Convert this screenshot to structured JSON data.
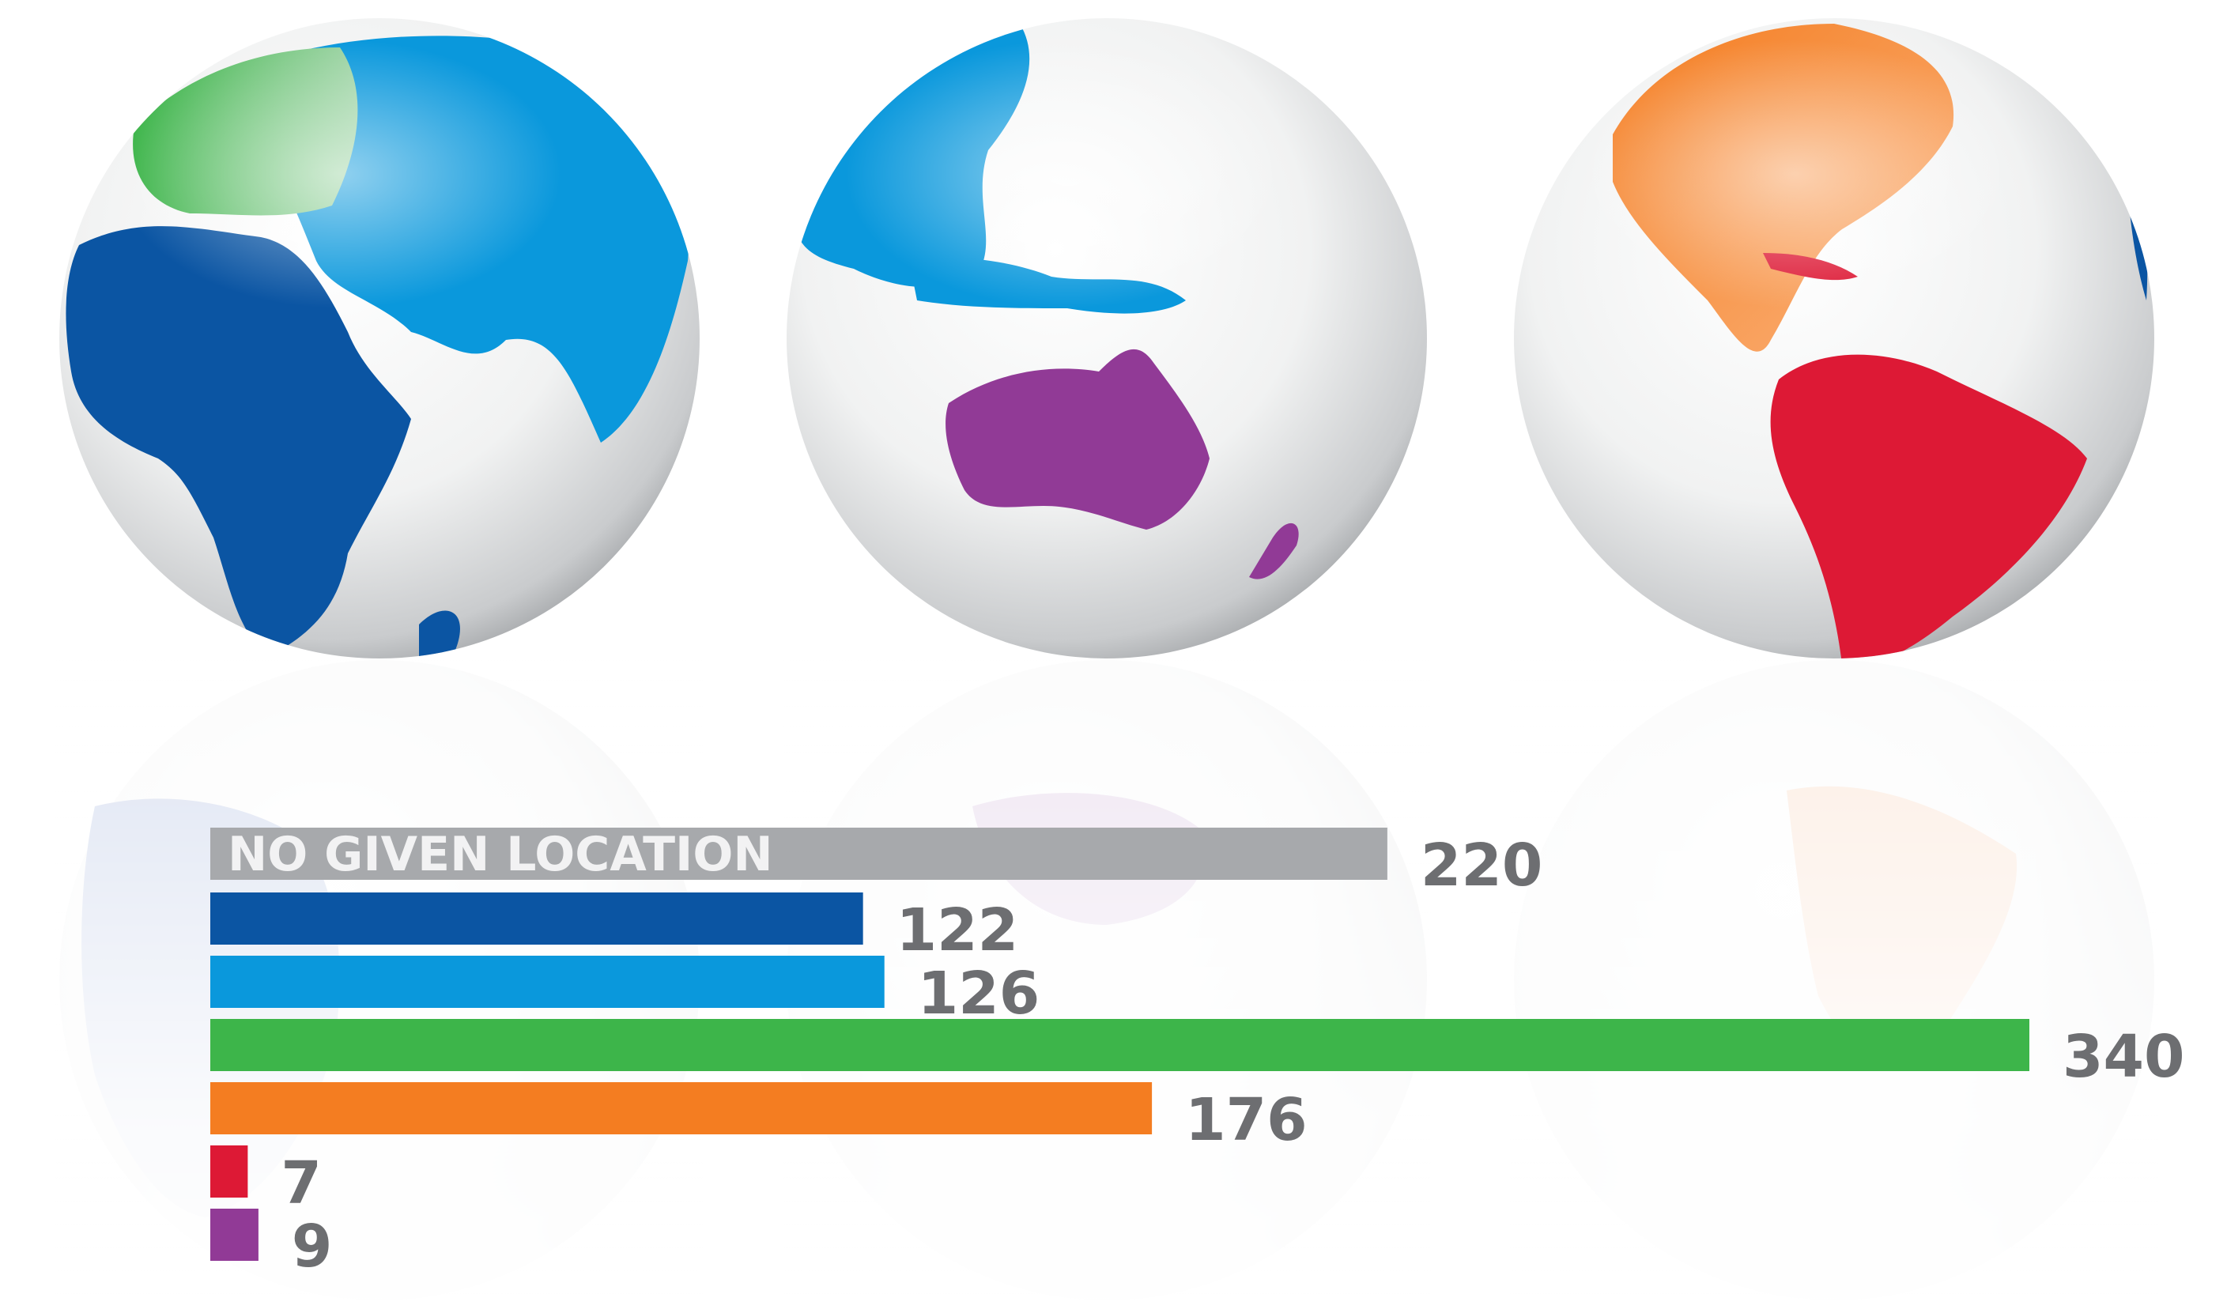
{
  "chart_data": {
    "type": "bar",
    "orientation": "horizontal",
    "title": "",
    "xlabel": "",
    "ylabel": "",
    "xlim": [
      0,
      340
    ],
    "grid": false,
    "legend": "none",
    "categories": [
      "NO GIVEN LOCATION",
      "",
      "",
      "",
      "",
      "",
      ""
    ],
    "values": [
      220,
      122,
      126,
      340,
      176,
      7,
      9
    ],
    "value_labels": [
      "220",
      "122",
      "126",
      "340",
      "176",
      "7",
      "9"
    ],
    "colors": [
      "#a7a9ac",
      "#0b55a3",
      "#0a98dc",
      "#3db54a",
      "#f47d21",
      "#dd1935",
      "#913a96"
    ]
  },
  "globes": [
    {
      "region_icons": [
        "africa-icon",
        "middle-east-asia-icon",
        "europe-icon"
      ]
    },
    {
      "region_icons": [
        "asia-icon",
        "australia-icon",
        "oceania-icon"
      ]
    },
    {
      "region_icons": [
        "north-america-icon",
        "south-america-icon"
      ]
    }
  ]
}
